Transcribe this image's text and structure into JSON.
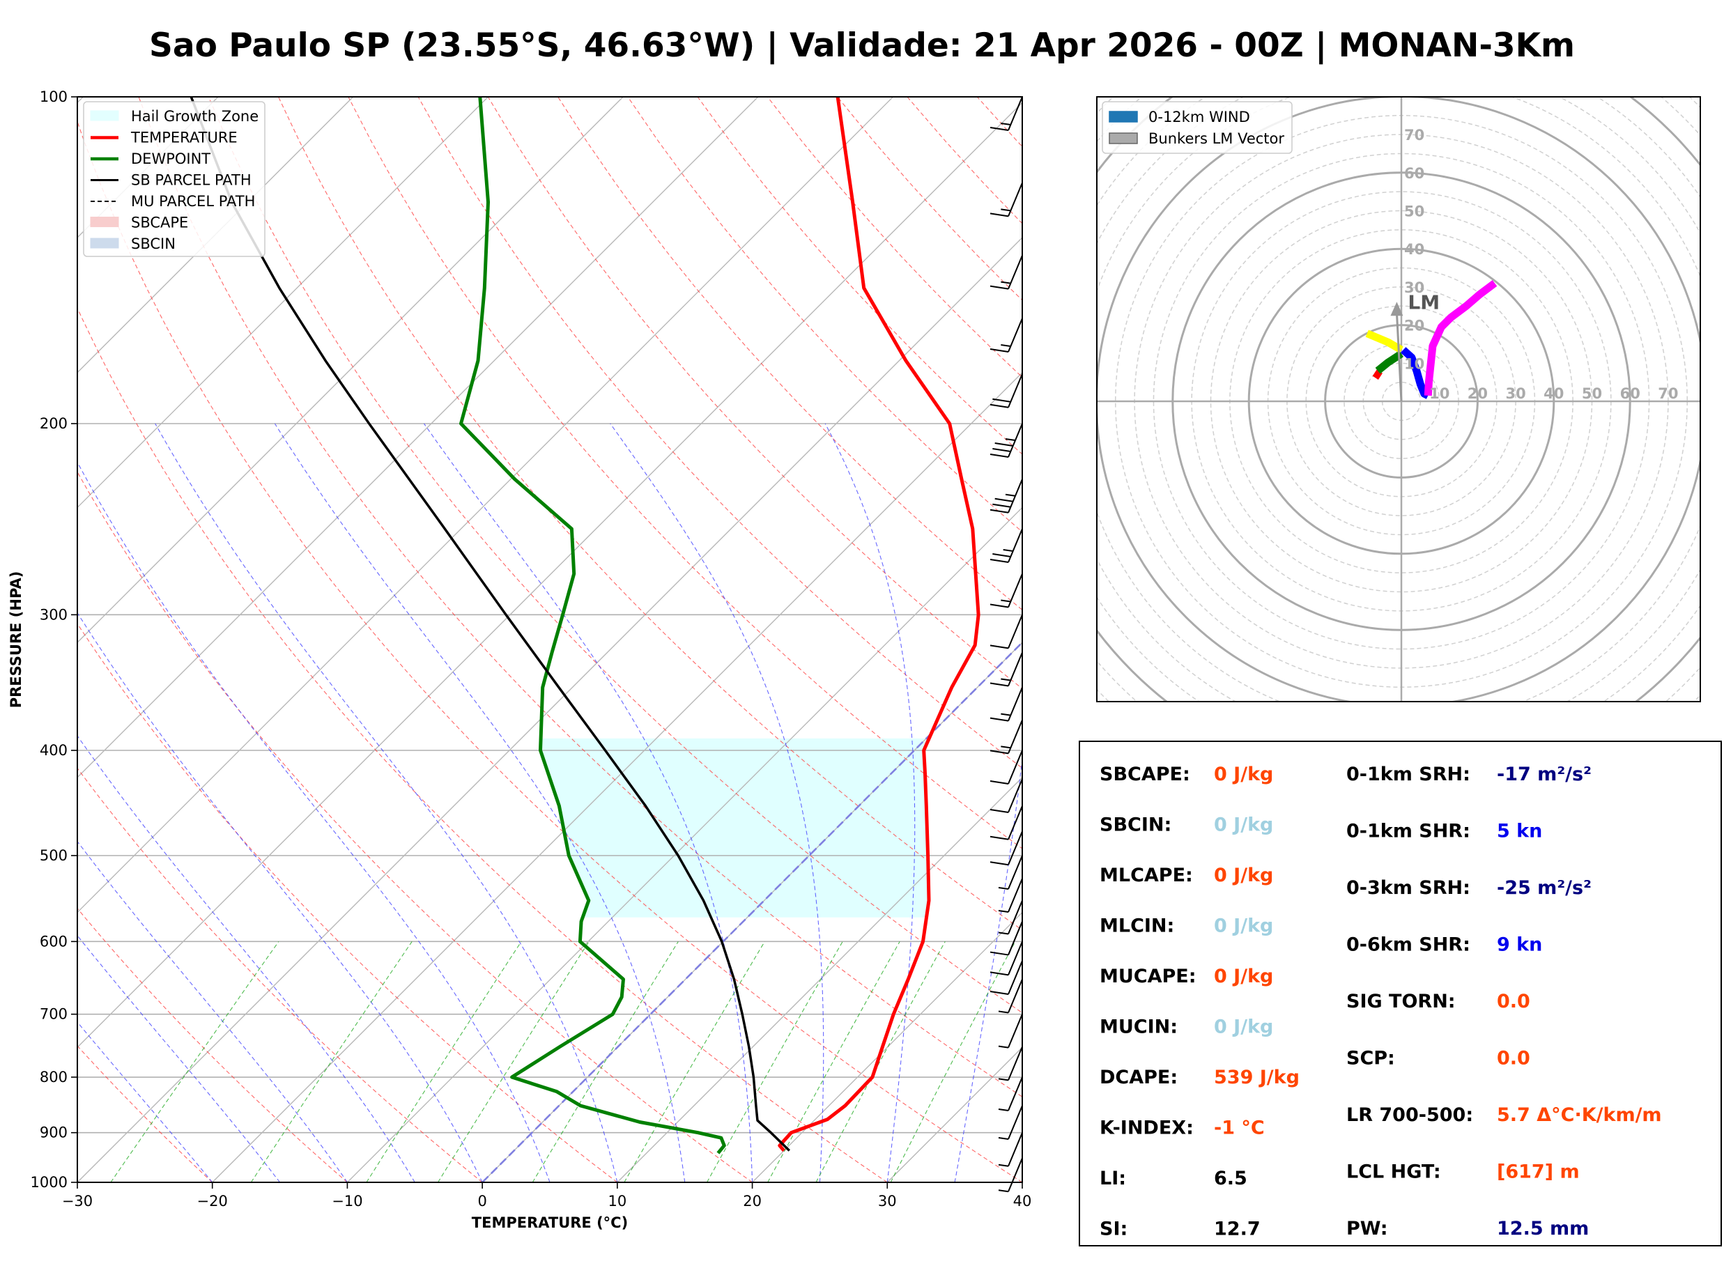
{
  "title": "Sao Paulo SP (23.55°S, 46.63°W) | Validade: 21 Apr 2026 - 00Z | MONAN-3Km",
  "colors": {
    "temperature": "#ff0000",
    "dewpoint": "#008000",
    "parcel": "#000000",
    "hail_zone": "#e0ffff",
    "dry_adiabat": "#ff4040",
    "moist_adiabat": "#4040ff",
    "mixing_ratio": "#22aa22",
    "isotherm_0": "#8080e0",
    "hodo_magenta": "#ff00ff",
    "hodo_blue": "#0000ff",
    "hodo_green": "#008000",
    "hodo_yellow": "#ffff00",
    "hodo_red": "#ff0000",
    "idx_orange": "#ff4500",
    "idx_lightblue": "#a0d0e0",
    "idx_navy": "#000080",
    "idx_blue": "#0000ee",
    "idx_black": "#000000"
  },
  "chart_data": [
    {
      "type": "line",
      "subtype": "skew-t log-p",
      "xlabel": "TEMPERATURE (°C)",
      "ylabel": "PRESSURE (HPA)",
      "xlim": [
        -30,
        40
      ],
      "ylim": [
        1000,
        100
      ],
      "yscale": "log",
      "x_ticks": [
        -30,
        -20,
        -10,
        0,
        10,
        20,
        30,
        40
      ],
      "x_tick_labels": [
        "−30",
        "−20",
        "−10",
        "0",
        "10",
        "20",
        "30",
        "40"
      ],
      "y_ticks": [
        1000,
        900,
        800,
        700,
        600,
        500,
        400,
        300,
        200,
        100
      ],
      "y_tick_labels": [
        "1000",
        "900",
        "800",
        "700",
        "600",
        "500",
        "400",
        "300",
        "200",
        "100"
      ],
      "grid": true,
      "legend_position": "top-left",
      "legend": [
        {
          "label": "Hail Growth Zone",
          "kind": "patch",
          "color": "#e0ffff"
        },
        {
          "label": "TEMPERATURE",
          "kind": "line",
          "color": "#ff0000"
        },
        {
          "label": "DEWPOINT",
          "kind": "line",
          "color": "#008000"
        },
        {
          "label": "SB PARCEL PATH",
          "kind": "line",
          "color": "#000000"
        },
        {
          "label": "MU PARCEL PATH",
          "kind": "dashed",
          "color": "#000000"
        },
        {
          "label": "SBCAPE",
          "kind": "patch",
          "color": "#f8c8c8"
        },
        {
          "label": "SBCIN",
          "kind": "patch",
          "color": "#c8d8ea"
        }
      ],
      "series": [
        {
          "name": "TEMPERATURE",
          "points": [
            {
              "p": 935,
              "t": 20.0
            },
            {
              "p": 925,
              "t": 19.3
            },
            {
              "p": 900,
              "t": 19.2
            },
            {
              "p": 875,
              "t": 20.9
            },
            {
              "p": 850,
              "t": 21.2
            },
            {
              "p": 800,
              "t": 21.1
            },
            {
              "p": 750,
              "t": 19.6
            },
            {
              "p": 700,
              "t": 18.0
            },
            {
              "p": 650,
              "t": 16.5
            },
            {
              "p": 600,
              "t": 14.8
            },
            {
              "p": 550,
              "t": 12.2
            },
            {
              "p": 500,
              "t": 8.8
            },
            {
              "p": 450,
              "t": 5.0
            },
            {
              "p": 420,
              "t": 2.5
            },
            {
              "p": 400,
              "t": 0.7
            },
            {
              "p": 350,
              "t": -1.9
            },
            {
              "p": 320,
              "t": -3.3
            },
            {
              "p": 300,
              "t": -5.3
            },
            {
              "p": 250,
              "t": -12.1
            },
            {
              "p": 225,
              "t": -16.6
            },
            {
              "p": 200,
              "t": -21.6
            },
            {
              "p": 175,
              "t": -29.5
            },
            {
              "p": 150,
              "t": -38.0
            },
            {
              "p": 125,
              "t": -45.2
            },
            {
              "p": 100,
              "t": -54.1
            }
          ]
        },
        {
          "name": "DEWPOINT",
          "points": [
            {
              "p": 940,
              "t": 15.3
            },
            {
              "p": 925,
              "t": 15.2
            },
            {
              "p": 910,
              "t": 14.4
            },
            {
              "p": 900,
              "t": 12.3
            },
            {
              "p": 880,
              "t": 7.2
            },
            {
              "p": 850,
              "t": 1.6
            },
            {
              "p": 825,
              "t": -1.2
            },
            {
              "p": 800,
              "t": -5.6
            },
            {
              "p": 750,
              "t": -4.3
            },
            {
              "p": 700,
              "t": -2.8
            },
            {
              "p": 675,
              "t": -3.4
            },
            {
              "p": 650,
              "t": -4.6
            },
            {
              "p": 600,
              "t": -10.6
            },
            {
              "p": 575,
              "t": -12.0
            },
            {
              "p": 550,
              "t": -13.0
            },
            {
              "p": 500,
              "t": -17.8
            },
            {
              "p": 450,
              "t": -22.2
            },
            {
              "p": 400,
              "t": -27.7
            },
            {
              "p": 350,
              "t": -32.2
            },
            {
              "p": 325,
              "t": -34.1
            },
            {
              "p": 300,
              "t": -36.1
            },
            {
              "p": 275,
              "t": -38.3
            },
            {
              "p": 250,
              "t": -41.8
            },
            {
              "p": 225,
              "t": -49.7
            },
            {
              "p": 200,
              "t": -57.8
            },
            {
              "p": 175,
              "t": -61.2
            },
            {
              "p": 150,
              "t": -66.1
            },
            {
              "p": 125,
              "t": -72.2
            },
            {
              "p": 100,
              "t": -80.6
            }
          ]
        },
        {
          "name": "SB PARCEL PATH",
          "points": [
            {
              "p": 935,
              "t": 20.4
            },
            {
              "p": 900,
              "t": 17.7
            },
            {
              "p": 877,
              "t": 15.8
            },
            {
              "p": 850,
              "t": 14.6
            },
            {
              "p": 800,
              "t": 12.3
            },
            {
              "p": 750,
              "t": 9.7
            },
            {
              "p": 700,
              "t": 6.8
            },
            {
              "p": 650,
              "t": 3.6
            },
            {
              "p": 600,
              "t": -0.1
            },
            {
              "p": 550,
              "t": -4.5
            },
            {
              "p": 500,
              "t": -9.7
            },
            {
              "p": 450,
              "t": -15.8
            },
            {
              "p": 400,
              "t": -22.9
            },
            {
              "p": 350,
              "t": -31.0
            },
            {
              "p": 300,
              "t": -40.3
            },
            {
              "p": 250,
              "t": -51.2
            },
            {
              "p": 200,
              "t": -64.6
            },
            {
              "p": 175,
              "t": -72.5
            },
            {
              "p": 150,
              "t": -81.3
            },
            {
              "p": 125,
              "t": -91.2
            },
            {
              "p": 100,
              "t": -102.0
            }
          ]
        }
      ],
      "hail_growth_zone": {
        "p_bottom": 570,
        "p_top": 390
      },
      "isotherm_zero": 0
    },
    {
      "type": "line",
      "subtype": "hodograph",
      "legend_position": "top-left",
      "legend": [
        {
          "label": "0-12km WIND",
          "kind": "patch",
          "color": "#1f77b4"
        },
        {
          "label": "Bunkers LM Vector",
          "kind": "patch",
          "color": "#aaaaaa"
        }
      ],
      "ring_labels": [
        "10",
        "20",
        "30",
        "40",
        "50",
        "60",
        "70"
      ],
      "rings": [
        10,
        20,
        30,
        40,
        50,
        60,
        70
      ],
      "range": 80,
      "lm_label": "LM",
      "lm_vector": {
        "u": -1.2,
        "v": 25
      },
      "series": [
        {
          "name": "0-1km",
          "color": "#ff0000",
          "points": [
            [
              -5.5,
              6.5
            ],
            [
              -7.0,
              7.5
            ]
          ]
        },
        {
          "name": "1-3km",
          "color": "#008000",
          "points": [
            [
              -6.2,
              8.0
            ],
            [
              -3.5,
              10.2
            ],
            [
              -1.5,
              11.5
            ],
            [
              0.0,
              12.5
            ]
          ]
        },
        {
          "name": "3-6km",
          "color": "#ffff00",
          "points": [
            [
              0.0,
              13.5
            ],
            [
              -3.5,
              15.5
            ],
            [
              -9.0,
              17.8
            ]
          ]
        },
        {
          "name": "6-9km",
          "color": "#0000ff",
          "points": [
            [
              0.5,
              13.5
            ],
            [
              2.7,
              11.5
            ],
            [
              4.0,
              8.0
            ],
            [
              5.0,
              4.5
            ],
            [
              6.0,
              2.0
            ],
            [
              7.0,
              1.5
            ]
          ]
        },
        {
          "name": "9-12km",
          "color": "#ff00ff",
          "points": [
            [
              7.0,
              1.5
            ],
            [
              7.2,
              5.0
            ],
            [
              8.2,
              14.5
            ],
            [
              10.5,
              19.5
            ],
            [
              13.0,
              22.0
            ],
            [
              17.0,
              25.0
            ],
            [
              20.5,
              28.0
            ],
            [
              24.5,
              31.0
            ]
          ]
        }
      ]
    }
  ],
  "wind_barbs": [
    {
      "p": 100,
      "kt": 15
    },
    {
      "p": 120,
      "kt": 15
    },
    {
      "p": 140,
      "kt": 15
    },
    {
      "p": 160,
      "kt": 15
    },
    {
      "p": 180,
      "kt": 20
    },
    {
      "p": 200,
      "kt": 35
    },
    {
      "p": 225,
      "kt": 35
    },
    {
      "p": 250,
      "kt": 25
    },
    {
      "p": 275,
      "kt": 15
    },
    {
      "p": 300,
      "kt": 10
    },
    {
      "p": 325,
      "kt": 15
    },
    {
      "p": 350,
      "kt": 15
    },
    {
      "p": 375,
      "kt": 15
    },
    {
      "p": 400,
      "kt": 10
    },
    {
      "p": 425,
      "kt": 10
    },
    {
      "p": 450,
      "kt": 10
    },
    {
      "p": 475,
      "kt": 10
    },
    {
      "p": 500,
      "kt": 5
    },
    {
      "p": 525,
      "kt": 5
    },
    {
      "p": 550,
      "kt": 5
    },
    {
      "p": 575,
      "kt": 10
    },
    {
      "p": 600,
      "kt": 10
    },
    {
      "p": 625,
      "kt": 10
    },
    {
      "p": 650,
      "kt": 5
    },
    {
      "p": 700,
      "kt": 5
    },
    {
      "p": 750,
      "kt": 5
    },
    {
      "p": 800,
      "kt": 5
    },
    {
      "p": 850,
      "kt": 5
    },
    {
      "p": 900,
      "kt": 5
    },
    {
      "p": 950,
      "kt": 5
    }
  ],
  "indices": {
    "left": [
      {
        "label": "SBCAPE:",
        "value": "0 J/kg",
        "color": "#ff4500"
      },
      {
        "label": "SBCIN:",
        "value": "0 J/kg",
        "color": "#a0d0e0"
      },
      {
        "label": "MLCAPE:",
        "value": "0 J/kg",
        "color": "#ff4500"
      },
      {
        "label": "MLCIN:",
        "value": "0 J/kg",
        "color": "#a0d0e0"
      },
      {
        "label": "MUCAPE:",
        "value": "0 J/kg",
        "color": "#ff4500"
      },
      {
        "label": "MUCIN:",
        "value": "0 J/kg",
        "color": "#a0d0e0"
      },
      {
        "label": "DCAPE:",
        "value": "539 J/kg",
        "color": "#ff4500"
      },
      {
        "label": "K-INDEX:",
        "value": "-1 °C",
        "color": "#ff4500"
      },
      {
        "label": "LI:",
        "value": "6.5",
        "color": "#000000"
      },
      {
        "label": "SI:",
        "value": "12.7",
        "color": "#000000"
      }
    ],
    "right": [
      {
        "label": "0-1km SRH:",
        "value": "-17 m²/s²",
        "color": "#000080"
      },
      {
        "label": "0-1km SHR:",
        "value": "5 kn",
        "color": "#0000ee"
      },
      {
        "label": "0-3km SRH:",
        "value": "-25 m²/s²",
        "color": "#000080"
      },
      {
        "label": "0-6km SHR:",
        "value": "9 kn",
        "color": "#0000ee"
      },
      {
        "label": "SIG TORN:",
        "value": "0.0",
        "color": "#ff4500"
      },
      {
        "label": "SCP:",
        "value": "0.0",
        "color": "#ff4500"
      },
      {
        "label": "LR 700-500:",
        "value": "5.7 Δ°C·K/km/m",
        "color": "#ff4500"
      },
      {
        "label": "LCL HGT:",
        "value": "[617] m",
        "color": "#ff4500"
      },
      {
        "label": "PW:",
        "value": "12.5 mm",
        "color": "#000080"
      }
    ]
  }
}
